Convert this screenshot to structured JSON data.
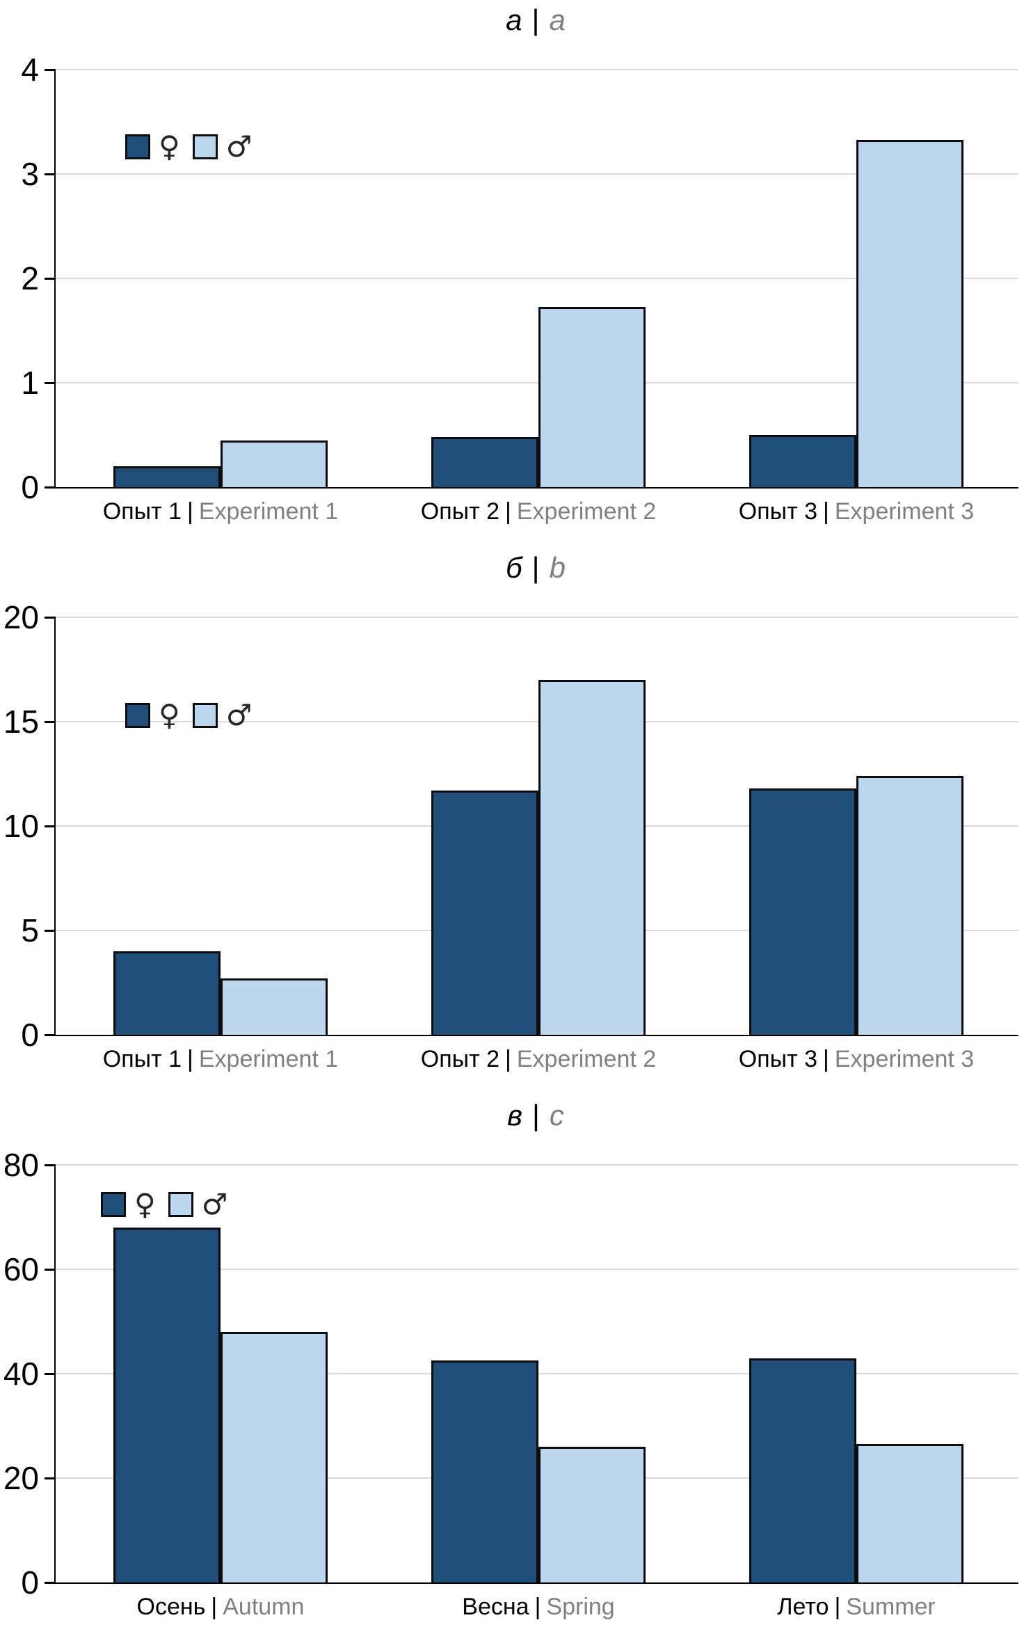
{
  "palette": {
    "female_fill": "#1F4E79",
    "male_fill": "#BDD7EE",
    "bar_border": "#0D0D0D",
    "gridline": "#D9D9D9",
    "axis": "#000000",
    "text_primary": "#000000",
    "text_secondary": "#808080"
  },
  "legend": {
    "female_symbol": "♀",
    "male_symbol": "♂"
  },
  "chart_data": [
    {
      "type": "bar",
      "panel": "a",
      "title": "а | a",
      "title_ru": "а",
      "title_sep": "|",
      "title_en": "a",
      "categories": [
        "Опыт 1 | Experiment 1",
        "Опыт 2 | Experiment 2",
        "Опыт 3 | Experiment 3"
      ],
      "categories_ru": [
        "Опыт 1",
        "Опыт 2",
        "Опыт 3"
      ],
      "categories_en": [
        "Experiment 1",
        "Experiment 2",
        "Experiment 3"
      ],
      "category_sep": "|",
      "series": [
        {
          "name": "♀",
          "values": [
            0.2,
            0.48,
            0.5
          ]
        },
        {
          "name": "♂",
          "values": [
            0.45,
            1.73,
            3.33
          ]
        }
      ],
      "ylim": [
        0,
        4
      ],
      "yticks": [
        0,
        1,
        2,
        3,
        4
      ],
      "grid": true,
      "legend_position": "top-left-inside"
    },
    {
      "type": "bar",
      "panel": "b",
      "title": "б | b",
      "title_ru": "б",
      "title_sep": "|",
      "title_en": "b",
      "categories": [
        "Опыт 1 | Experiment 1",
        "Опыт 2 | Experiment 2",
        "Опыт 3 | Experiment 3"
      ],
      "categories_ru": [
        "Опыт 1",
        "Опыт 2",
        "Опыт 3"
      ],
      "categories_en": [
        "Experiment 1",
        "Experiment 2",
        "Experiment 3"
      ],
      "category_sep": "|",
      "series": [
        {
          "name": "♀",
          "values": [
            4.0,
            11.7,
            11.8
          ]
        },
        {
          "name": "♂",
          "values": [
            2.7,
            17.0,
            12.4
          ]
        }
      ],
      "ylim": [
        0,
        20
      ],
      "yticks": [
        0,
        5,
        10,
        15,
        20
      ],
      "grid": true,
      "legend_position": "top-left-inside"
    },
    {
      "type": "bar",
      "panel": "c",
      "title": "в | c",
      "title_ru": "в",
      "title_sep": "|",
      "title_en": "c",
      "categories": [
        "Осень | Autumn",
        "Весна | Spring",
        "Лето | Summer"
      ],
      "categories_ru": [
        "Осень",
        "Весна",
        "Лето"
      ],
      "categories_en": [
        "Autumn",
        "Spring",
        "Summer"
      ],
      "category_sep": "|",
      "series": [
        {
          "name": "♀",
          "values": [
            68,
            42.5,
            43
          ]
        },
        {
          "name": "♂",
          "values": [
            48,
            26,
            26.5
          ]
        }
      ],
      "ylim": [
        0,
        80
      ],
      "yticks": [
        0,
        20,
        40,
        60,
        80
      ],
      "grid": true,
      "legend_position": "top-left-inside"
    }
  ]
}
